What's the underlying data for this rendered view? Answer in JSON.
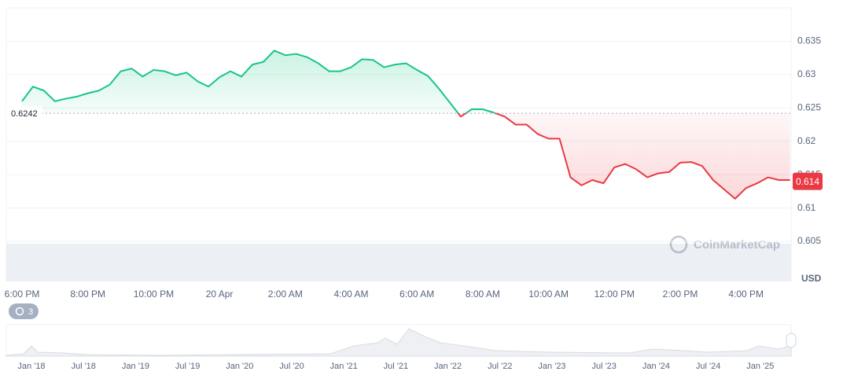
{
  "chart_data": {
    "type": "line",
    "currency": "USD",
    "baseline": 0.6242,
    "last_price": 0.614,
    "up_color": "#16c784",
    "down_color": "#ea3943",
    "categories": [
      "6:00 PM",
      null,
      null,
      null,
      null,
      null,
      "8:00 PM",
      null,
      null,
      null,
      null,
      null,
      "10:00 PM",
      null,
      null,
      null,
      null,
      null,
      "20 Apr",
      null,
      null,
      null,
      null,
      null,
      "2:00 AM",
      null,
      null,
      null,
      null,
      null,
      "4:00 AM",
      null,
      null,
      null,
      null,
      null,
      "6:00 AM",
      null,
      null,
      null,
      null,
      null,
      "8:00 AM",
      null,
      null,
      null,
      null,
      null,
      "10:00 AM",
      null,
      null,
      null,
      null,
      null,
      "12:00 PM",
      null,
      null,
      null,
      null,
      null,
      "2:00 PM",
      null,
      null,
      null,
      null,
      null,
      "4:00 PM",
      null,
      null,
      null,
      null
    ],
    "values": [
      0.626,
      0.6282,
      0.6276,
      0.626,
      0.6264,
      0.6267,
      0.6272,
      0.6276,
      0.6285,
      0.6305,
      0.6309,
      0.6297,
      0.6307,
      0.6305,
      0.6299,
      0.6303,
      0.629,
      0.6282,
      0.6296,
      0.6305,
      0.6297,
      0.6315,
      0.6319,
      0.6336,
      0.6329,
      0.6331,
      0.6326,
      0.6317,
      0.6305,
      0.6305,
      0.6311,
      0.6323,
      0.6322,
      0.6311,
      0.6315,
      0.6317,
      0.6307,
      0.6298,
      0.6279,
      0.6258,
      0.6237,
      0.6248,
      0.6248,
      0.6243,
      0.6237,
      0.6225,
      0.6225,
      0.6211,
      0.6204,
      0.6204,
      0.6146,
      0.6134,
      0.6142,
      0.6137,
      0.6161,
      0.6166,
      0.6158,
      0.6146,
      0.6152,
      0.6154,
      0.6168,
      0.6169,
      0.6163,
      0.6142,
      0.6128,
      0.6114,
      0.613,
      0.6137,
      0.6146,
      0.6142,
      0.6142
    ],
    "ylim": [
      0.599,
      0.64
    ],
    "yticks": [
      0.605,
      0.61,
      0.615,
      0.62,
      0.625,
      0.63,
      0.635
    ],
    "grid": true,
    "navigator": {
      "labels": [
        "Jan '18",
        "Jul '18",
        "Jan '19",
        "Jul '19",
        "Jan '20",
        "Jul '20",
        "Jan '21",
        "Jul '21",
        "Jan '22",
        "Jul '22",
        "Jan '23",
        "Jul '23",
        "Jan '24",
        "Jul '24",
        "Jan '25"
      ]
    },
    "badge": "3",
    "watermark": "CoinMarketCap"
  }
}
